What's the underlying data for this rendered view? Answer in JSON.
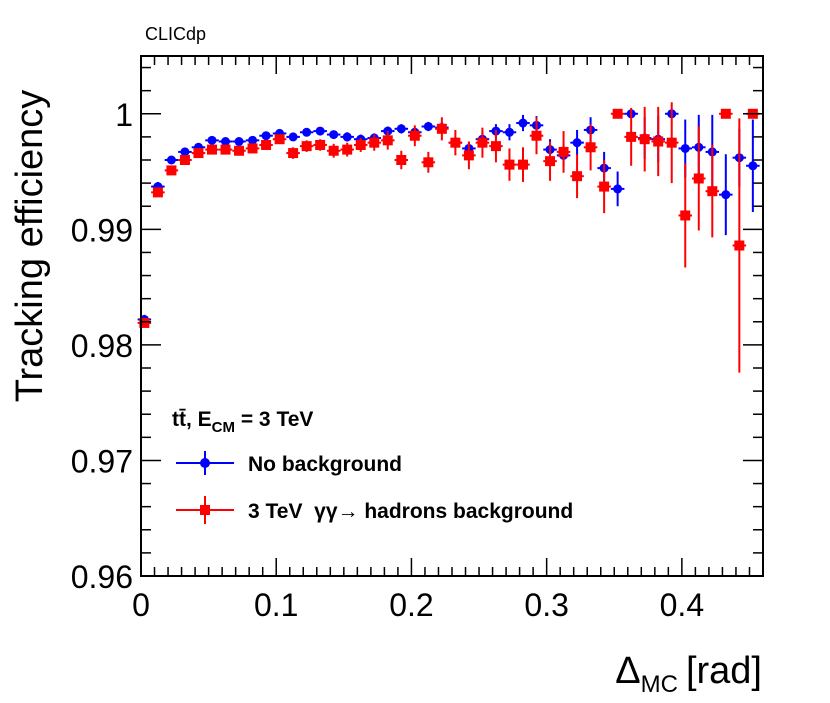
{
  "chart_data": {
    "type": "scatter",
    "experiment_label": "CLICdp",
    "xlabel": "Δ",
    "xlabel_sub": "MC",
    "xlabel_unit": "[rad]",
    "ylabel": "Tracking efficiency",
    "xlim": [
      0,
      0.46
    ],
    "ylim": [
      0.96,
      1.005
    ],
    "x_ticks": [
      0,
      0.1,
      0.2,
      0.3,
      0.4
    ],
    "x_tick_labels": [
      "0",
      "0.1",
      "0.2",
      "0.3",
      "0.4"
    ],
    "y_ticks": [
      0.96,
      0.97,
      0.98,
      0.99,
      1.0
    ],
    "y_tick_labels": [
      "0.96",
      "0.97",
      "0.98",
      "0.99",
      "1"
    ],
    "legend": {
      "process_prefix": "tt̄, E",
      "process_sub": "CM",
      "process_suffix": " = 3 TeV",
      "placement": "bottom-left"
    },
    "series": [
      {
        "name": "No background",
        "color": "#0000ff",
        "marker": "circle",
        "x": [
          0.0025,
          0.0125,
          0.0225,
          0.0325,
          0.0425,
          0.0525,
          0.0625,
          0.0725,
          0.0825,
          0.0925,
          0.1025,
          0.1125,
          0.1225,
          0.1325,
          0.1425,
          0.1525,
          0.1625,
          0.1725,
          0.1825,
          0.1925,
          0.2025,
          0.2125,
          0.2225,
          0.2325,
          0.2425,
          0.2525,
          0.2625,
          0.2725,
          0.2825,
          0.2925,
          0.3025,
          0.3125,
          0.3225,
          0.3325,
          0.3425,
          0.3525,
          0.3625,
          0.3725,
          0.3825,
          0.3925,
          0.4025,
          0.4125,
          0.4225,
          0.4325,
          0.4425,
          0.4525
        ],
        "y": [
          0.9822,
          0.9937,
          0.996,
          0.9967,
          0.9971,
          0.9977,
          0.9976,
          0.9976,
          0.9977,
          0.9981,
          0.9983,
          0.998,
          0.9984,
          0.9985,
          0.9982,
          0.998,
          0.9978,
          0.9979,
          0.9985,
          0.9987,
          0.9984,
          0.9989,
          0.9988,
          0.9975,
          0.997,
          0.9978,
          0.9985,
          0.9984,
          0.9992,
          0.999,
          0.9969,
          0.9964,
          0.9975,
          0.9986,
          0.9953,
          0.9935,
          1.0,
          0.9979,
          0.9978,
          1.0,
          0.997,
          0.9971,
          0.9967,
          0.993,
          0.9962,
          0.9955
        ],
        "y_err": [
          0.0004,
          0.0004,
          0.0003,
          0.0003,
          0.0003,
          0.0003,
          0.0003,
          0.0003,
          0.0003,
          0.0003,
          0.0003,
          0.0003,
          0.0003,
          0.0003,
          0.0003,
          0.0004,
          0.0004,
          0.0004,
          0.0004,
          0.0004,
          0.0004,
          0.0004,
          0.0005,
          0.0005,
          0.0006,
          0.0006,
          0.0006,
          0.0007,
          0.0007,
          0.0008,
          0.0009,
          0.001,
          0.0011,
          0.0011,
          0.0014,
          0.0015,
          0.0,
          0.0018,
          0.002,
          0.0,
          0.0025,
          0.0028,
          0.0032,
          0.0035,
          0.0025,
          0.004
        ]
      },
      {
        "name": "3 TeV  γγ→ hadrons background",
        "color": "#ff0000",
        "marker": "square",
        "x": [
          0.0025,
          0.0125,
          0.0225,
          0.0325,
          0.0425,
          0.0525,
          0.0625,
          0.0725,
          0.0825,
          0.0925,
          0.1025,
          0.1125,
          0.1225,
          0.1325,
          0.1425,
          0.1525,
          0.1625,
          0.1725,
          0.1825,
          0.1925,
          0.2025,
          0.2125,
          0.2225,
          0.2325,
          0.2425,
          0.2525,
          0.2625,
          0.2725,
          0.2825,
          0.2925,
          0.3025,
          0.3125,
          0.3225,
          0.3325,
          0.3425,
          0.3525,
          0.3625,
          0.3725,
          0.3825,
          0.3925,
          0.4025,
          0.4125,
          0.4225,
          0.4325,
          0.4425,
          0.4525
        ],
        "y": [
          0.9819,
          0.9932,
          0.9951,
          0.996,
          0.9966,
          0.9969,
          0.9969,
          0.9968,
          0.997,
          0.9973,
          0.9978,
          0.9966,
          0.9972,
          0.9973,
          0.9968,
          0.9969,
          0.9973,
          0.9975,
          0.9977,
          0.996,
          0.9981,
          0.9958,
          0.9987,
          0.9975,
          0.9964,
          0.9975,
          0.9972,
          0.9956,
          0.9956,
          0.9981,
          0.9959,
          0.9967,
          0.9946,
          0.9971,
          0.9937,
          1.0,
          0.998,
          0.9978,
          0.9976,
          0.9975,
          0.9912,
          0.9944,
          0.9933,
          1.0,
          0.9886,
          1.0
        ],
        "y_err": [
          0.0004,
          0.0004,
          0.0004,
          0.0003,
          0.0003,
          0.0003,
          0.0003,
          0.0003,
          0.0004,
          0.0004,
          0.0004,
          0.0005,
          0.0005,
          0.0005,
          0.0006,
          0.0006,
          0.0006,
          0.0007,
          0.0008,
          0.0008,
          0.0009,
          0.0009,
          0.001,
          0.0011,
          0.0012,
          0.0013,
          0.0014,
          0.0014,
          0.0015,
          0.0016,
          0.0017,
          0.0018,
          0.0019,
          0.002,
          0.0023,
          0.0,
          0.0025,
          0.0028,
          0.003,
          0.0035,
          0.0045,
          0.0045,
          0.004,
          0.0,
          0.011,
          0.0
        ]
      }
    ]
  }
}
